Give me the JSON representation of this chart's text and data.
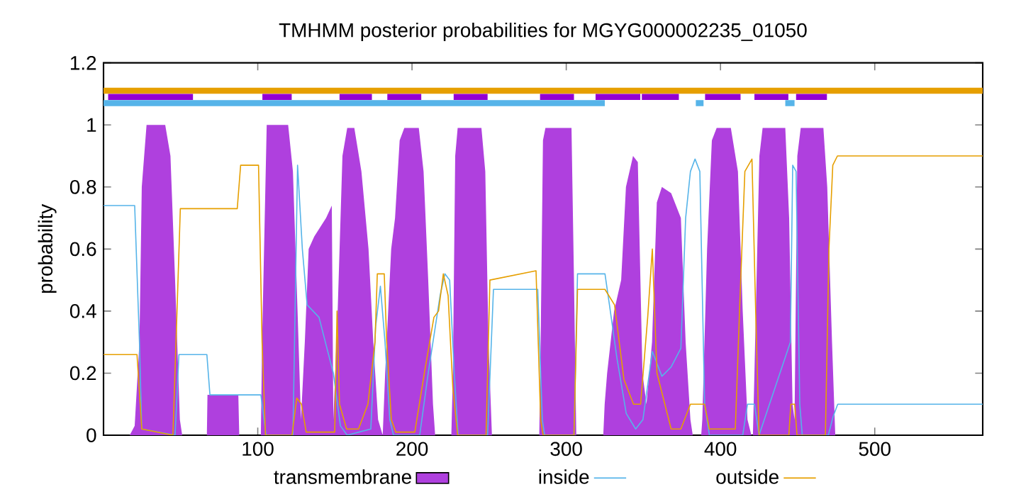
{
  "chart_data": {
    "type": "line",
    "title": "TMHMM posterior probabilities for MGYG000002235_01050",
    "ylabel": "probability",
    "xlim": [
      0,
      570
    ],
    "ylim": [
      0,
      1.2
    ],
    "xticks": [
      100,
      200,
      300,
      400,
      500
    ],
    "yticks": [
      0,
      0.2,
      0.4,
      0.6,
      0.8,
      1,
      1.2
    ],
    "legend": "bottom",
    "grid": false,
    "series": [
      {
        "name": "transmembrane",
        "type": "area",
        "color": "#af40de",
        "x": [
          0,
          17,
          20.2,
          23.3,
          24.8,
          27.9,
          40,
          43.4,
          46.4,
          49.5,
          51,
          67,
          67.4,
          87.4,
          88,
          102,
          102.8,
          105.8,
          119.7,
          122.8,
          125.8,
          128,
          130.5,
          133,
          136.6,
          144.3,
          148,
          149,
          151.8,
          154.9,
          158,
          162.6,
          167.2,
          171.8,
          174.9,
          178,
          181,
          182.6,
          186.5,
          189,
          192,
          195,
          204.4,
          207.5,
          210.5,
          213.6,
          215,
          225.5,
          226.5,
          228,
          229.6,
          245,
          247.5,
          249.6,
          251.8,
          282.5,
          283.4,
          284.9,
          286.5,
          303.4,
          305,
          306.5,
          324,
          324.9,
          326.5,
          331,
          335.6,
          338.7,
          343.3,
          346.4,
          349.4,
          352,
          355.6,
          358.7,
          362,
          368,
          374.3,
          377.4,
          380.5,
          382,
          387.5,
          388.2,
          391.3,
          394.4,
          397.5,
          406.7,
          411.3,
          414.4,
          417.5,
          420,
          421,
          422,
          425.2,
          427.3,
          442,
          444.5,
          446.7,
          448,
          449.8,
          452,
          466.7,
          469.2,
          472.3,
          474.4,
          570
        ],
        "values": [
          0,
          0,
          0.03,
          0.3,
          0.8,
          1,
          1,
          0.9,
          0.5,
          0.05,
          0,
          0,
          0.13,
          0.13,
          0,
          0,
          0.3,
          1,
          1,
          0.85,
          0.4,
          0.05,
          0.3,
          0.6,
          0.64,
          0.7,
          0.74,
          0.05,
          0.4,
          0.9,
          0.99,
          0.99,
          0.85,
          0.6,
          0.3,
          0.05,
          0,
          0.2,
          0.6,
          0.7,
          0.95,
          0.99,
          0.99,
          0.85,
          0.5,
          0.1,
          0,
          0,
          0.2,
          0.9,
          0.99,
          0.99,
          0.85,
          0.3,
          0,
          0,
          0.3,
          0.95,
          0.99,
          0.99,
          0.5,
          0,
          0,
          0.1,
          0.2,
          0.4,
          0.5,
          0.8,
          0.9,
          0.88,
          0.2,
          0.1,
          0.3,
          0.75,
          0.8,
          0.78,
          0.7,
          0.3,
          0.05,
          0,
          0,
          0.05,
          0.6,
          0.95,
          0.99,
          0.99,
          0.85,
          0.4,
          0.05,
          0,
          0,
          0.2,
          0.9,
          0.99,
          0.99,
          0.7,
          0.1,
          0.05,
          0.9,
          0.99,
          0.99,
          0.8,
          0.3,
          0,
          0
        ]
      },
      {
        "name": "inside",
        "color": "#56b4e9",
        "x": [
          0,
          20.2,
          23.3,
          24.8,
          46.4,
          48.9,
          67,
          69,
          102,
          105.4,
          122.8,
          125.8,
          128.9,
          132,
          139.7,
          145.9,
          149,
          153.6,
          158,
          173.3,
          176.4,
          179.5,
          182.5,
          185.6,
          188,
          205,
          210.5,
          218.2,
          221.3,
          224.4,
          227.4,
          229.9,
          249,
          252.8,
          281.5,
          284.5,
          286,
          305,
          307.3,
          325.1,
          328,
          332.8,
          338.9,
          345,
          349.7,
          355.8,
          362,
          368,
          374.3,
          377.4,
          380.5,
          383.5,
          386.6,
          389.7,
          392.8,
          414.4,
          417.5,
          422,
          425,
          445.3,
          446.8,
          449,
          451.4,
          453,
          469.9,
          473,
          476,
          570
        ],
        "values": [
          0.74,
          0.74,
          0.3,
          0.02,
          0,
          0.26,
          0.26,
          0.13,
          0.13,
          0,
          0,
          0.87,
          0.6,
          0.42,
          0.38,
          0.26,
          0.2,
          0.03,
          0,
          0.02,
          0.35,
          0.48,
          0.3,
          0.05,
          0,
          0,
          0.2,
          0.45,
          0.52,
          0.5,
          0.2,
          0,
          0,
          0.47,
          0.47,
          0.05,
          0,
          0,
          0.52,
          0.52,
          0.42,
          0.25,
          0.07,
          0.02,
          0.05,
          0.27,
          0.19,
          0.22,
          0.28,
          0.7,
          0.85,
          0.89,
          0.85,
          0.1,
          0,
          0,
          0.1,
          0.1,
          0,
          0.3,
          0.87,
          0.85,
          0.1,
          0,
          0,
          0.06,
          0.1,
          0.1
        ]
      },
      {
        "name": "outside",
        "color": "#e69f00",
        "x": [
          0,
          21.7,
          24.8,
          45,
          48.3,
          49.8,
          86.7,
          88.9,
          100.5,
          102.8,
          105,
          122.2,
          125.3,
          128.3,
          131.4,
          149.9,
          151.4,
          153,
          157.6,
          165.3,
          171.4,
          176,
          177.5,
          182,
          183.6,
          186.6,
          189.5,
          201.8,
          208,
          214.2,
          217.2,
          220.3,
          223.4,
          226.5,
          229.6,
          248,
          250.5,
          280.4,
          283.4,
          285,
          305,
          307.3,
          325.1,
          331.3,
          337.4,
          343.6,
          348.2,
          352.8,
          355.8,
          358.8,
          368,
          374.3,
          380.5,
          389.7,
          392.8,
          409.6,
          412.7,
          415.8,
          420.4,
          422.8,
          425,
          444.3,
          445.6,
          448.1,
          449.6,
          468,
          470.3,
          472.8,
          475.8,
          570
        ],
        "values": [
          0.26,
          0.26,
          0.02,
          0,
          0.5,
          0.73,
          0.73,
          0.87,
          0.87,
          0.3,
          0,
          0,
          0.12,
          0.1,
          0.01,
          0.01,
          0.4,
          0.1,
          0.02,
          0.02,
          0.1,
          0.3,
          0.52,
          0.52,
          0.3,
          0.05,
          0.01,
          0.01,
          0.2,
          0.38,
          0.4,
          0.52,
          0.45,
          0.15,
          0,
          0,
          0.5,
          0.53,
          0.05,
          0,
          0,
          0.47,
          0.47,
          0.42,
          0.18,
          0.1,
          0.1,
          0.38,
          0.6,
          0.2,
          0.02,
          0.02,
          0.1,
          0.1,
          0.02,
          0.02,
          0.45,
          0.85,
          0.89,
          0.4,
          0,
          0,
          0.1,
          0.1,
          0,
          0,
          0.6,
          0.87,
          0.9,
          0.9
        ]
      },
      {
        "color": "#e69f00",
        "x": [
          0,
          570
        ],
        "values": [
          1.11,
          1.11
        ]
      },
      {
        "color": "#56b4e9",
        "x": [
          0,
          325,
          null,
          384,
          389,
          null,
          442,
          448
        ],
        "values": [
          1.07,
          1.07,
          null,
          1.07,
          1.07,
          null,
          1.07,
          1.07
        ]
      },
      {
        "color": "#9400d3",
        "x": [
          3,
          58,
          null,
          103,
          122,
          null,
          153,
          174,
          null,
          184,
          206,
          null,
          227,
          249,
          null,
          283,
          305,
          null,
          319,
          348,
          null,
          349,
          373,
          null,
          390,
          413,
          null,
          422,
          444,
          null,
          449,
          469
        ],
        "values": [
          1.09,
          1.09,
          null,
          1.09,
          1.09,
          null,
          1.09,
          1.09,
          null,
          1.09,
          1.09,
          null,
          1.09,
          1.09,
          null,
          1.09,
          1.09,
          null,
          1.09,
          1.09,
          null,
          1.09,
          1.09,
          null,
          1.09,
          1.09,
          null,
          1.09,
          1.09,
          null,
          1.09,
          1.09
        ]
      }
    ]
  }
}
